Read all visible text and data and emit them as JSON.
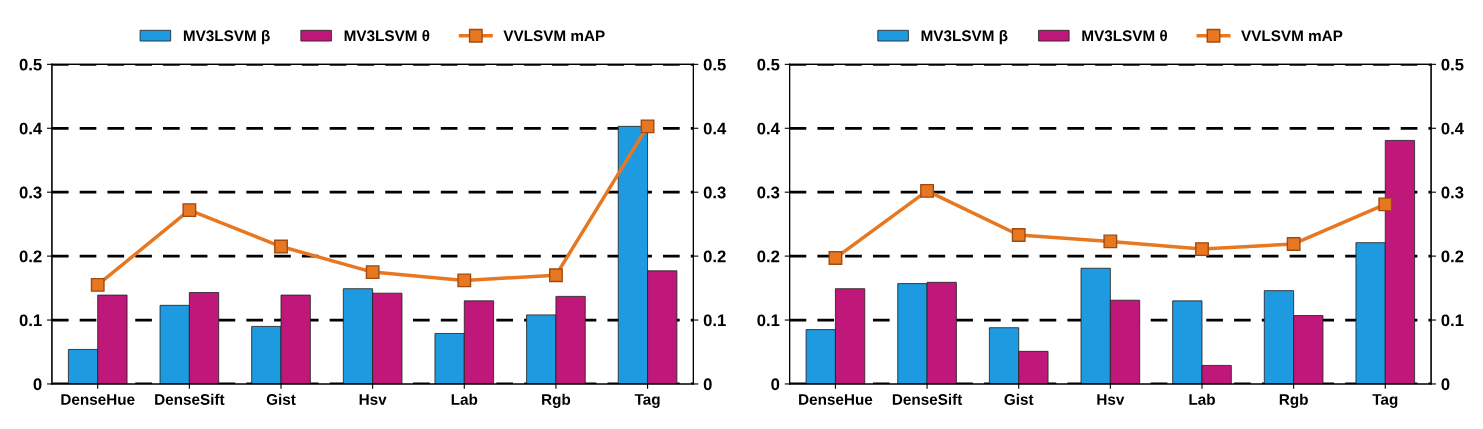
{
  "chart_data": [
    {
      "type": "bar",
      "categories": [
        "DenseHue",
        "DenseSift",
        "Gist",
        "Hsv",
        "Lab",
        "Rgb",
        "Tag"
      ],
      "series": [
        {
          "name": "MV3LSVM β",
          "color": "#1e9be0",
          "values": [
            0.054,
            0.123,
            0.09,
            0.149,
            0.079,
            0.108,
            0.403
          ]
        },
        {
          "name": "MV3LSVM θ",
          "color": "#c0187a",
          "values": [
            0.139,
            0.143,
            0.139,
            0.142,
            0.13,
            0.137,
            0.177
          ]
        },
        {
          "name": "VVLSVM mAP",
          "type": "line",
          "color": "#e87722",
          "marker": "square",
          "values": [
            0.155,
            0.272,
            0.215,
            0.175,
            0.162,
            0.17,
            0.403
          ]
        }
      ],
      "ylim": [
        0,
        0.5
      ],
      "yticks": [
        0,
        0.1,
        0.2,
        0.3,
        0.4,
        0.5
      ],
      "y2lim": [
        0,
        0.5
      ],
      "y2ticks": [
        0,
        0.1,
        0.2,
        0.3,
        0.4,
        0.5
      ],
      "grid": "y",
      "legend": "top"
    },
    {
      "type": "bar",
      "categories": [
        "DenseHue",
        "DenseSift",
        "Gist",
        "Hsv",
        "Lab",
        "Rgb",
        "Tag"
      ],
      "series": [
        {
          "name": "MV3LSVM β",
          "color": "#1e9be0",
          "values": [
            0.085,
            0.157,
            0.088,
            0.181,
            0.13,
            0.146,
            0.221
          ]
        },
        {
          "name": "MV3LSVM θ",
          "color": "#c0187a",
          "values": [
            0.149,
            0.159,
            0.051,
            0.131,
            0.029,
            0.107,
            0.381
          ]
        },
        {
          "name": "VVLSVM mAP",
          "type": "line",
          "color": "#e87722",
          "marker": "square",
          "values": [
            0.197,
            0.302,
            0.233,
            0.223,
            0.211,
            0.219,
            0.281
          ]
        }
      ],
      "ylim": [
        0,
        0.5
      ],
      "yticks": [
        0,
        0.1,
        0.2,
        0.3,
        0.4,
        0.5
      ],
      "y2lim": [
        0,
        0.5
      ],
      "y2ticks": [
        0,
        0.1,
        0.2,
        0.3,
        0.4,
        0.5
      ],
      "grid": "y",
      "legend": "top"
    }
  ]
}
